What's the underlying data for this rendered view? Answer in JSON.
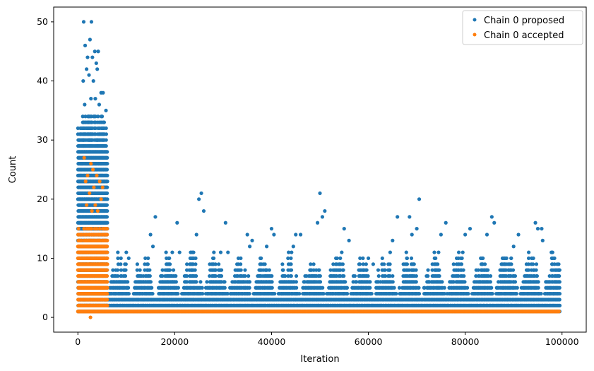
{
  "chart_data": {
    "type": "scatter",
    "xlabel": "Iteration",
    "ylabel": "Count",
    "xlim": [
      -5000,
      105000
    ],
    "ylim": [
      -2.5,
      52.5
    ],
    "xticks": [
      0,
      20000,
      40000,
      60000,
      80000,
      100000
    ],
    "xtick_labels": [
      "0",
      "20000",
      "40000",
      "60000",
      "80000",
      "100000"
    ],
    "yticks": [
      0,
      10,
      20,
      30,
      40,
      50
    ],
    "ytick_labels": [
      "0",
      "10",
      "20",
      "30",
      "40",
      "50"
    ],
    "grid": false,
    "legend_position": "upper-right",
    "legend": [
      "Chain 0 proposed",
      "Chain 0 accepted"
    ],
    "series": [
      {
        "name": "Chain 0 proposed",
        "color": "#1f77b4",
        "points": [
          [
            1200,
            50
          ],
          [
            2800,
            50
          ],
          [
            1500,
            46
          ],
          [
            2500,
            47
          ],
          [
            3500,
            45
          ],
          [
            4200,
            45
          ],
          [
            2000,
            44
          ],
          [
            3000,
            44
          ],
          [
            3800,
            43
          ],
          [
            1800,
            42
          ],
          [
            4000,
            42
          ],
          [
            2300,
            41
          ],
          [
            3200,
            40
          ],
          [
            1100,
            40
          ],
          [
            4800,
            38
          ],
          [
            5200,
            38
          ],
          [
            2700,
            37
          ],
          [
            3600,
            37
          ],
          [
            1400,
            36
          ],
          [
            4400,
            36
          ],
          [
            5800,
            35
          ],
          [
            2100,
            34
          ],
          [
            3300,
            34
          ],
          [
            5000,
            34
          ],
          [
            10000,
            11
          ],
          [
            10500,
            10
          ],
          [
            15000,
            14
          ],
          [
            16000,
            17
          ],
          [
            15500,
            12
          ],
          [
            20500,
            16
          ],
          [
            19500,
            11
          ],
          [
            21000,
            11
          ],
          [
            24500,
            14
          ],
          [
            25000,
            20
          ],
          [
            25500,
            21
          ],
          [
            26000,
            18
          ],
          [
            30500,
            16
          ],
          [
            29500,
            11
          ],
          [
            31000,
            11
          ],
          [
            35000,
            14
          ],
          [
            36000,
            13
          ],
          [
            35500,
            12
          ],
          [
            40000,
            15
          ],
          [
            40500,
            14
          ],
          [
            39000,
            12
          ],
          [
            45000,
            14
          ],
          [
            46000,
            14
          ],
          [
            44500,
            12
          ],
          [
            50000,
            21
          ],
          [
            50500,
            17
          ],
          [
            51000,
            18
          ],
          [
            49500,
            16
          ],
          [
            55000,
            15
          ],
          [
            56000,
            13
          ],
          [
            54500,
            11
          ],
          [
            60000,
            10
          ],
          [
            59000,
            8
          ],
          [
            61000,
            9
          ],
          [
            65000,
            13
          ],
          [
            66000,
            17
          ],
          [
            64500,
            11
          ],
          [
            68500,
            17
          ],
          [
            69000,
            14
          ],
          [
            70000,
            15
          ],
          [
            70500,
            20
          ],
          [
            75000,
            14
          ],
          [
            76000,
            16
          ],
          [
            74500,
            11
          ],
          [
            80000,
            14
          ],
          [
            81000,
            15
          ],
          [
            79500,
            11
          ],
          [
            84500,
            14
          ],
          [
            85500,
            17
          ],
          [
            86000,
            16
          ],
          [
            90000,
            12
          ],
          [
            91000,
            14
          ],
          [
            89500,
            10
          ],
          [
            94500,
            16
          ],
          [
            95000,
            15
          ],
          [
            95800,
            15
          ],
          [
            96000,
            13
          ],
          [
            99000,
            9
          ],
          [
            98500,
            6
          ],
          [
            99500,
            8
          ]
        ]
      },
      {
        "name": "Chain 0 accepted",
        "color": "#ff7f0e",
        "points": [
          [
            2600,
            0
          ],
          [
            1300,
            27
          ],
          [
            2700,
            26
          ],
          [
            3100,
            25
          ],
          [
            2000,
            24
          ],
          [
            3900,
            24
          ],
          [
            4500,
            23
          ],
          [
            1600,
            23
          ],
          [
            3300,
            22
          ],
          [
            5100,
            22
          ],
          [
            2400,
            21
          ],
          [
            4800,
            20
          ],
          [
            1800,
            19
          ],
          [
            3600,
            19
          ],
          [
            4100,
            18
          ],
          [
            2900,
            18
          ]
        ]
      }
    ]
  }
}
